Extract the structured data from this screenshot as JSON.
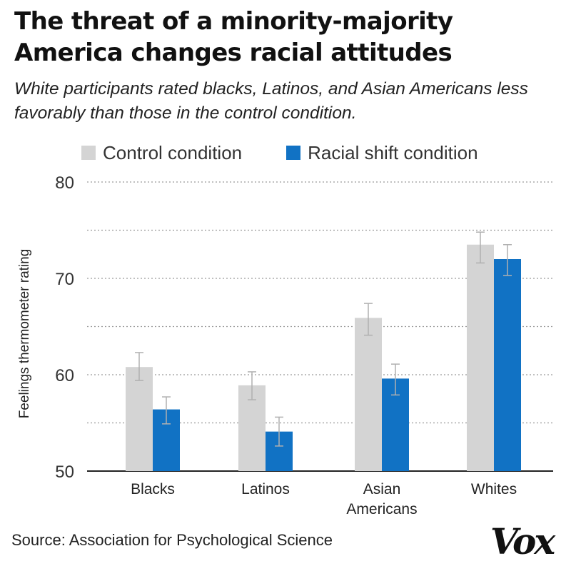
{
  "header": {
    "title": "The threat of a minority-majority America changes racial attitudes",
    "subtitle": "White participants rated blacks, Latinos, and Asian Americans less favorably than those in the control condition."
  },
  "footer": {
    "source": "Source: Association for Psychological Science",
    "logo_text": "Vox"
  },
  "colors": {
    "control": "#d4d4d4",
    "racial_shift": "#1172c4",
    "error_bar": "#b0b0b0",
    "grid": "#9a9a9a",
    "axis": "#222222",
    "text": "#1a1a1a"
  },
  "chart_data": {
    "type": "bar",
    "title": "The threat of a minority-majority America changes racial attitudes",
    "subtitle": "White participants rated blacks, Latinos, and Asian Americans less favorably than those in the control condition.",
    "xlabel": "",
    "ylabel": "Feelings thermometer rating",
    "ylim": [
      50,
      80
    ],
    "yticks": [
      50,
      60,
      70,
      80
    ],
    "categories": [
      "Blacks",
      "Latinos",
      "Asian Americans",
      "Whites"
    ],
    "category_lines": [
      [
        "Blacks"
      ],
      [
        "Latinos"
      ],
      [
        "Asian",
        "Americans"
      ],
      [
        "Whites"
      ]
    ],
    "series": [
      {
        "name": "Control condition",
        "values": [
          60.8,
          58.9,
          65.9,
          73.5
        ],
        "error_low": [
          59.4,
          57.4,
          64.1,
          71.6
        ],
        "error_high": [
          62.3,
          60.3,
          67.4,
          74.8
        ]
      },
      {
        "name": "Racial shift condition",
        "values": [
          56.4,
          54.1,
          59.6,
          72.0
        ],
        "error_low": [
          54.9,
          52.6,
          57.9,
          70.3
        ],
        "error_high": [
          57.7,
          55.6,
          61.1,
          73.5
        ]
      }
    ],
    "grid": true,
    "legend_position": "top"
  }
}
